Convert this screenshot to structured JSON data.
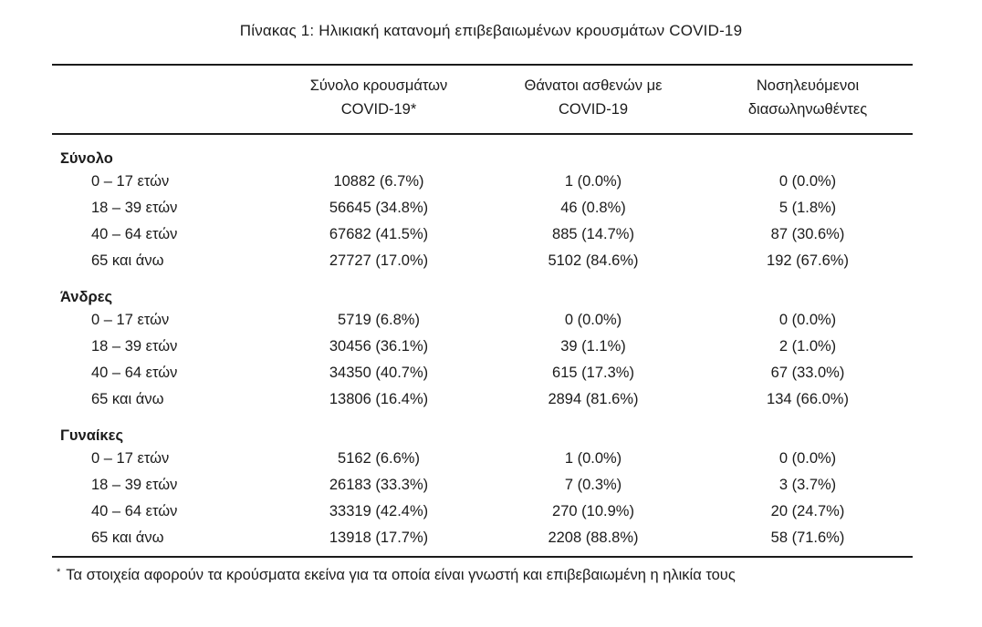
{
  "page": {
    "title": "Πίνακας 1: Ηλικιακή κατανομή επιβεβαιωμένων κρουσμάτων COVID-19"
  },
  "table": {
    "headers": [
      {
        "line1": "Σύνολο κρουσμάτων",
        "line2": "COVID-19*"
      },
      {
        "line1": "Θάνατοι ασθενών με",
        "line2": "COVID-19"
      },
      {
        "line1": "Νοσηλευόμενοι",
        "line2": "διασωληνωθέντες"
      }
    ],
    "sections": [
      {
        "label": "Σύνολο",
        "rows": [
          {
            "age": "0 – 17 ετών",
            "cases": "10882 (6.7%)",
            "deaths": "1 (0.0%)",
            "intubated": "0 (0.0%)"
          },
          {
            "age": "18 – 39 ετών",
            "cases": "56645 (34.8%)",
            "deaths": "46 (0.8%)",
            "intubated": "5 (1.8%)"
          },
          {
            "age": "40 – 64 ετών",
            "cases": "67682 (41.5%)",
            "deaths": "885 (14.7%)",
            "intubated": "87 (30.6%)"
          },
          {
            "age": "65 και άνω",
            "cases": "27727 (17.0%)",
            "deaths": "5102 (84.6%)",
            "intubated": "192 (67.6%)"
          }
        ]
      },
      {
        "label": "Άνδρες",
        "rows": [
          {
            "age": "0 – 17 ετών",
            "cases": "5719 (6.8%)",
            "deaths": "0 (0.0%)",
            "intubated": "0 (0.0%)"
          },
          {
            "age": "18 – 39 ετών",
            "cases": "30456 (36.1%)",
            "deaths": "39 (1.1%)",
            "intubated": "2 (1.0%)"
          },
          {
            "age": "40 – 64 ετών",
            "cases": "34350 (40.7%)",
            "deaths": "615 (17.3%)",
            "intubated": "67 (33.0%)"
          },
          {
            "age": "65 και άνω",
            "cases": "13806 (16.4%)",
            "deaths": "2894 (81.6%)",
            "intubated": "134 (66.0%)"
          }
        ]
      },
      {
        "label": "Γυναίκες",
        "rows": [
          {
            "age": "0 – 17 ετών",
            "cases": "5162 (6.6%)",
            "deaths": "1 (0.0%)",
            "intubated": "0 (0.0%)"
          },
          {
            "age": "18 – 39 ετών",
            "cases": "26183 (33.3%)",
            "deaths": "7 (0.3%)",
            "intubated": "3 (3.7%)"
          },
          {
            "age": "40 – 64 ετών",
            "cases": "33319 (42.4%)",
            "deaths": "270 (10.9%)",
            "intubated": "20 (24.7%)"
          },
          {
            "age": "65 και άνω",
            "cases": "13918 (17.7%)",
            "deaths": "2208 (88.8%)",
            "intubated": "58 (71.6%)"
          }
        ]
      }
    ]
  },
  "footnote": {
    "marker": "*",
    "text": "Τα στοιχεία αφορούν τα κρούσματα εκείνα για τα οποία είναι γνωστή και επιβεβαιωμένη η ηλικία τους"
  },
  "colors": {
    "text": "#1b1b1b",
    "rule": "#1b1b1b",
    "background": "#ffffff"
  }
}
